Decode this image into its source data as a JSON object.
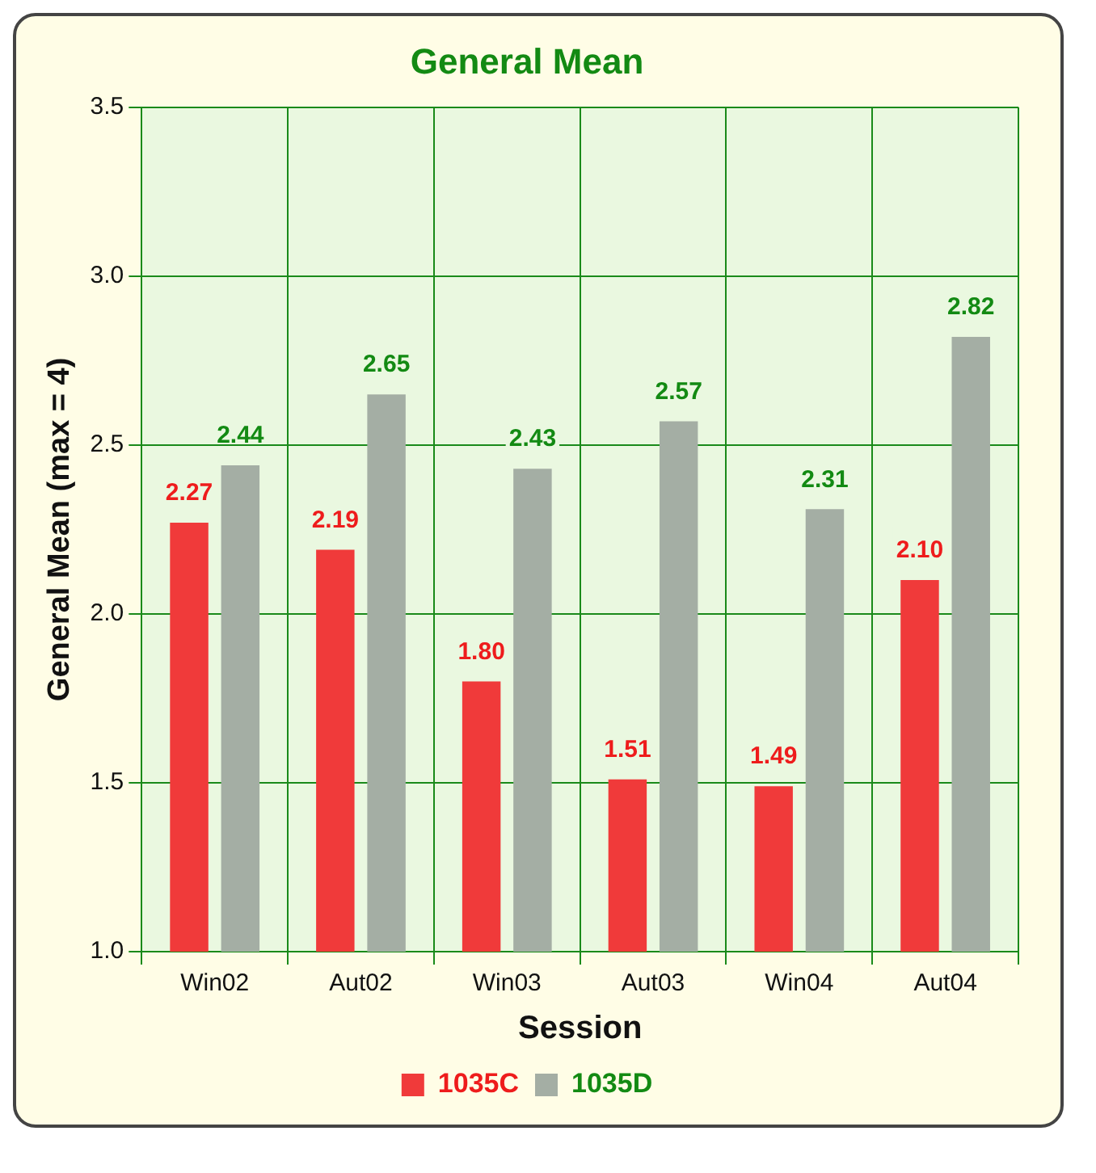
{
  "chart_data": {
    "type": "bar",
    "title": "General Mean",
    "xlabel": "Session",
    "ylabel": "General Mean (max = 4)",
    "categories": [
      "Win02",
      "Aut02",
      "Win03",
      "Aut03",
      "Win04",
      "Aut04"
    ],
    "series": [
      {
        "name": "1035C",
        "color": "#f03a3a",
        "values": [
          2.27,
          2.19,
          1.8,
          1.51,
          1.49,
          2.1
        ],
        "value_labels": [
          "2.27",
          "2.19",
          "1.80",
          "1.51",
          "1.49",
          "2.10"
        ]
      },
      {
        "name": "1035D",
        "color": "#a4aea4",
        "values": [
          2.44,
          2.65,
          2.43,
          2.57,
          2.31,
          2.82
        ],
        "value_labels": [
          "2.44",
          "2.65",
          "2.43",
          "2.57",
          "2.31",
          "2.82"
        ]
      }
    ],
    "ylim": [
      1,
      3.5
    ],
    "yticks": [
      {
        "value": 1,
        "label": "1.0"
      },
      {
        "value": 1.5,
        "label": "1.5"
      },
      {
        "value": 2,
        "label": "2.0"
      },
      {
        "value": 2.5,
        "label": "2.5"
      },
      {
        "value": 3,
        "label": "3.0"
      },
      {
        "value": 3.5,
        "label": "3.5"
      }
    ],
    "grid": true,
    "legend": "bottom"
  }
}
